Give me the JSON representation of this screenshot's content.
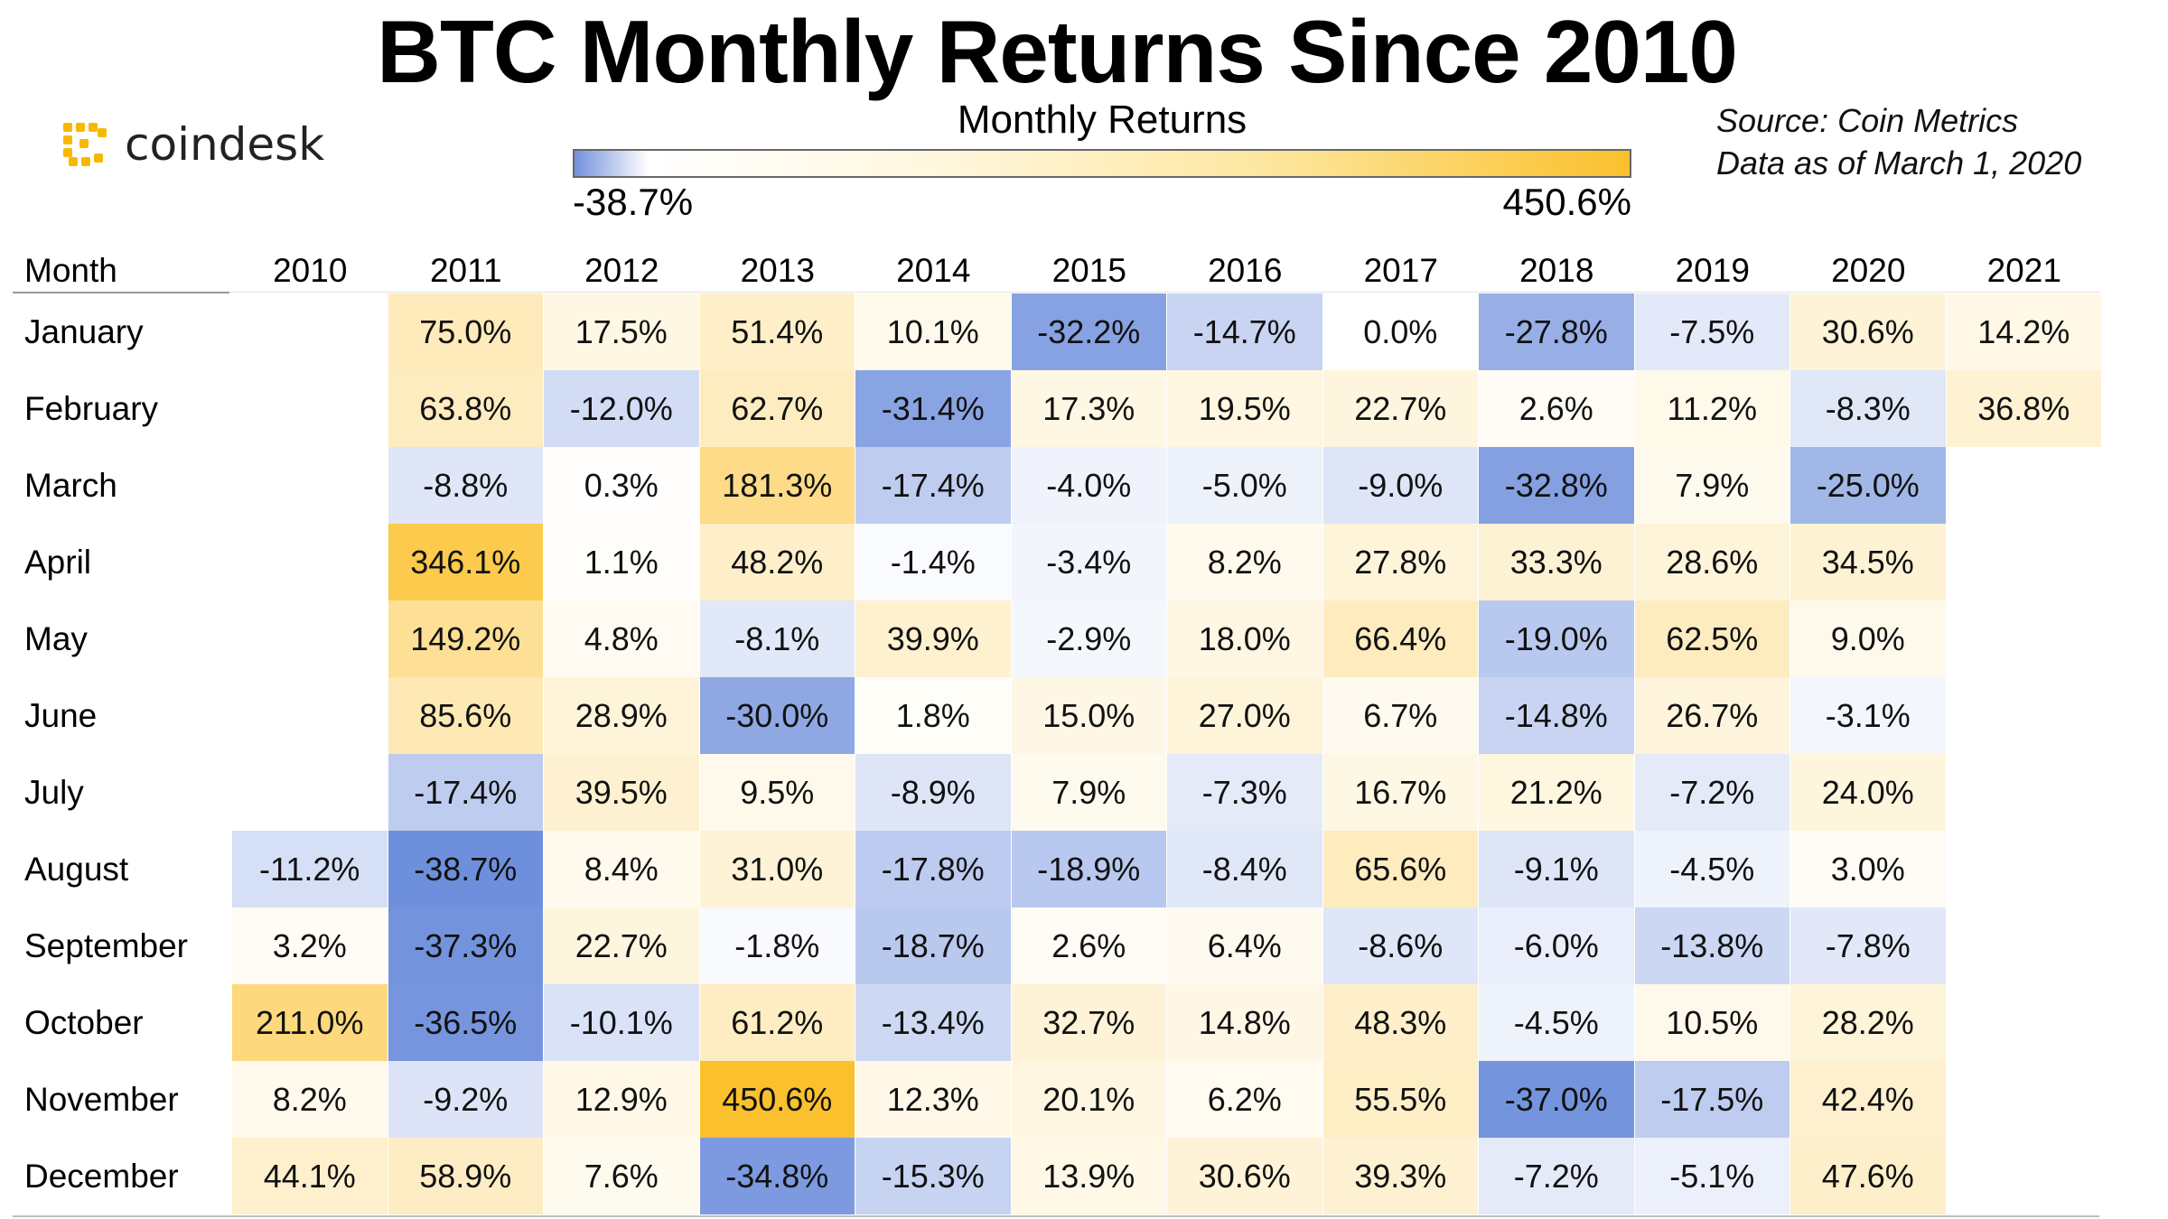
{
  "title": "BTC Monthly Returns Since 2010",
  "logo": {
    "text": "coindesk",
    "icon": "coindesk-logo-icon",
    "color": "#f7b900"
  },
  "source": {
    "line1": "Source: Coin Metrics",
    "line2": "Data as of March 1, 2020"
  },
  "chart_data": {
    "type": "heatmap",
    "title": "BTC Monthly Returns Since 2010",
    "color_scale": {
      "label": "Monthly Returns",
      "min_label": "-38.7%",
      "max_label": "450.6%",
      "min": -38.7,
      "max": 450.6,
      "colors": {
        "negative": "#6e8fdc",
        "zero": "#ffffff",
        "positive": "#fbc02d"
      }
    },
    "row_header": "Month",
    "columns": [
      "2010",
      "2011",
      "2012",
      "2013",
      "2014",
      "2015",
      "2016",
      "2017",
      "2018",
      "2019",
      "2020",
      "2021"
    ],
    "rows": [
      "January",
      "February",
      "March",
      "April",
      "May",
      "June",
      "July",
      "August",
      "September",
      "October",
      "November",
      "December"
    ],
    "values": [
      [
        null,
        75.0,
        17.5,
        51.4,
        10.1,
        -32.2,
        -14.7,
        0.0,
        -27.8,
        -7.5,
        30.6,
        14.2
      ],
      [
        null,
        63.8,
        -12.0,
        62.7,
        -31.4,
        17.3,
        19.5,
        22.7,
        2.6,
        11.2,
        -8.3,
        36.8
      ],
      [
        null,
        -8.8,
        0.3,
        181.3,
        -17.4,
        -4.0,
        -5.0,
        -9.0,
        -32.8,
        7.9,
        -25.0,
        null
      ],
      [
        null,
        346.1,
        1.1,
        48.2,
        -1.4,
        -3.4,
        8.2,
        27.8,
        33.3,
        28.6,
        34.5,
        null
      ],
      [
        null,
        149.2,
        4.8,
        -8.1,
        39.9,
        -2.9,
        18.0,
        66.4,
        -19.0,
        62.5,
        9.0,
        null
      ],
      [
        null,
        85.6,
        28.9,
        -30.0,
        1.8,
        15.0,
        27.0,
        6.7,
        -14.8,
        26.7,
        -3.1,
        null
      ],
      [
        null,
        -17.4,
        39.5,
        9.5,
        -8.9,
        7.9,
        -7.3,
        16.7,
        21.2,
        -7.2,
        24.0,
        null
      ],
      [
        -11.2,
        -38.7,
        8.4,
        31.0,
        -17.8,
        -18.9,
        -8.4,
        65.6,
        -9.1,
        -4.5,
        3.0,
        null
      ],
      [
        3.2,
        -37.3,
        22.7,
        -1.8,
        -18.7,
        2.6,
        6.4,
        -8.6,
        -6.0,
        -13.8,
        -7.8,
        null
      ],
      [
        211.0,
        -36.5,
        -10.1,
        61.2,
        -13.4,
        32.7,
        14.8,
        48.3,
        -4.5,
        10.5,
        28.2,
        null
      ],
      [
        8.2,
        -9.2,
        12.9,
        450.6,
        12.3,
        20.1,
        6.2,
        55.5,
        -37.0,
        -17.5,
        42.4,
        null
      ],
      [
        44.1,
        58.9,
        7.6,
        -34.8,
        -15.3,
        13.9,
        30.6,
        39.3,
        -7.2,
        -5.1,
        47.6,
        null
      ]
    ]
  }
}
